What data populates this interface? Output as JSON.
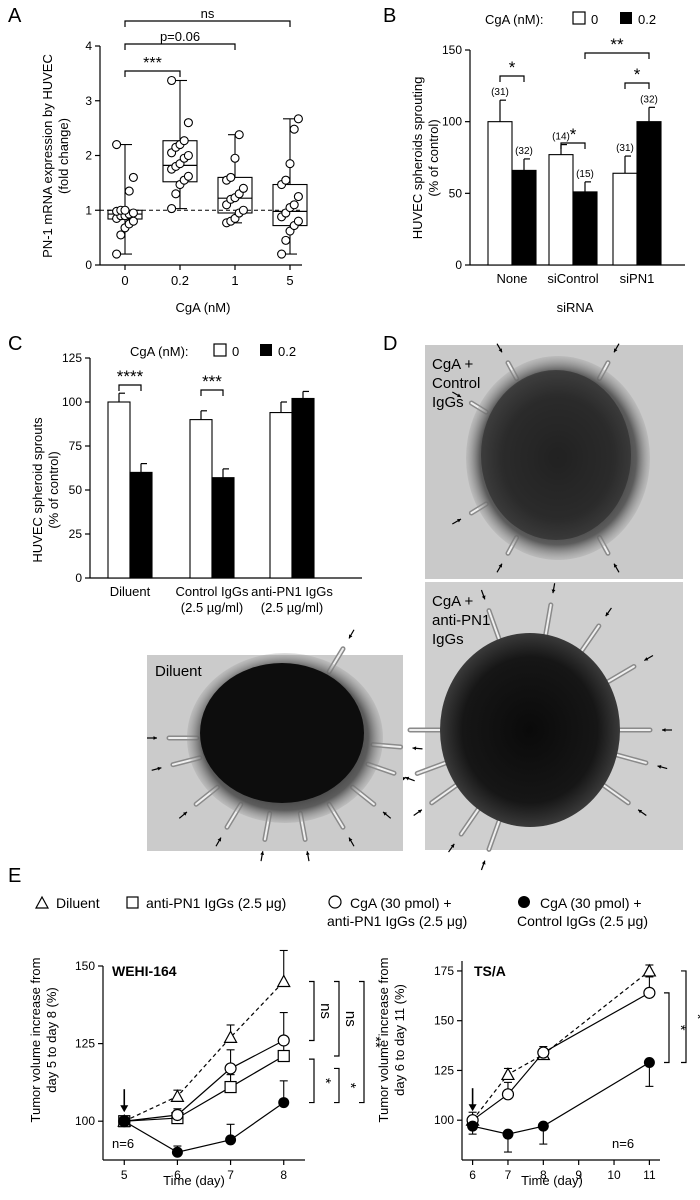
{
  "colors": {
    "open": "#ffffff",
    "filled": "#000000",
    "micro_bg": "#c8c8c8",
    "micro_dark": "#151515"
  },
  "panels": {
    "A": "A",
    "B": "B",
    "C": "C",
    "D": "D",
    "E": "E"
  },
  "chart_data": [
    {
      "id": "A",
      "type": "box",
      "ylabel": "PN-1 mRNA expression by HUVEC\n(fold change)",
      "xlabel": "CgA (nM)",
      "categories": [
        "0",
        "0.2",
        "1",
        "5"
      ],
      "ylim": [
        0,
        4
      ],
      "yticks": [
        "0",
        "1",
        "2",
        "3",
        "4"
      ],
      "reference_line": 1,
      "boxes": [
        {
          "min": 0.2,
          "q1": 0.84,
          "median": 0.93,
          "q3": 1.0,
          "max": 2.2
        },
        {
          "min": 1.03,
          "q1": 1.52,
          "median": 1.82,
          "q3": 2.27,
          "max": 3.37
        },
        {
          "min": 0.77,
          "q1": 0.95,
          "median": 1.22,
          "q3": 1.6,
          "max": 2.38
        },
        {
          "min": 0.2,
          "q1": 0.72,
          "median": 0.98,
          "q3": 1.47,
          "max": 2.67
        }
      ],
      "points": [
        [
          0.2,
          0.55,
          0.68,
          0.75,
          0.8,
          0.85,
          0.9,
          0.9,
          0.93,
          0.95,
          0.98,
          1.0,
          1.0,
          1.35,
          1.6,
          2.2
        ],
        [
          1.03,
          1.3,
          1.47,
          1.55,
          1.62,
          1.75,
          1.8,
          1.85,
          1.95,
          2.0,
          2.05,
          2.15,
          2.2,
          2.27,
          2.6,
          3.37
        ],
        [
          0.77,
          0.8,
          0.85,
          0.95,
          1.0,
          1.1,
          1.2,
          1.23,
          1.3,
          1.4,
          1.55,
          1.6,
          1.95,
          2.38
        ],
        [
          0.2,
          0.45,
          0.62,
          0.72,
          0.8,
          0.88,
          0.95,
          1.05,
          1.1,
          1.25,
          1.47,
          1.55,
          1.85,
          2.48,
          2.67
        ]
      ],
      "annotations": [
        {
          "from": "0",
          "to": "0.2",
          "text": "***"
        },
        {
          "from": "0",
          "to": "1",
          "text": "p=0.06"
        },
        {
          "from": "0",
          "to": "5",
          "text": "ns"
        }
      ]
    },
    {
      "id": "B",
      "type": "bar",
      "legend_title": "CgA (nM):",
      "legend": [
        "0",
        "0.2"
      ],
      "ylabel": "HUVEC spheroids sprouting\n(% of control)",
      "xlabel": "siRNA",
      "categories": [
        "None",
        "siControl",
        "siPN1"
      ],
      "ylim": [
        0,
        150
      ],
      "yticks": [
        "0",
        "50",
        "100",
        "150"
      ],
      "series": [
        {
          "name": "0",
          "values": [
            100,
            77,
            64
          ],
          "errors": [
            15,
            7,
            12
          ],
          "n_labels": [
            "(31)",
            "(14)",
            "(31)"
          ]
        },
        {
          "name": "0.2",
          "values": [
            66,
            51,
            100
          ],
          "errors": [
            8,
            7,
            10
          ],
          "n_labels": [
            "(32)",
            "(15)",
            "(32)"
          ]
        }
      ],
      "annotations": [
        "*",
        "*",
        "*",
        "**"
      ]
    },
    {
      "id": "C",
      "type": "bar",
      "legend_title": "CgA (nM):",
      "legend": [
        "0",
        "0.2"
      ],
      "ylabel": "HUVEC spheroid sprouts\n(% of control)",
      "categories": [
        "Diluent",
        "Control IgGs\n(2.5 µg/ml)",
        "anti-PN1 IgGs\n(2.5 µg/ml)"
      ],
      "ylim": [
        0,
        125
      ],
      "yticks": [
        "0",
        "25",
        "50",
        "75",
        "100",
        "125"
      ],
      "series": [
        {
          "name": "0",
          "values": [
            100,
            90,
            94
          ],
          "errors": [
            5,
            5,
            6
          ]
        },
        {
          "name": "0.2",
          "values": [
            60,
            57,
            102
          ],
          "errors": [
            5,
            5,
            4
          ]
        }
      ],
      "annotations": [
        "****",
        "***"
      ]
    },
    {
      "id": "E1",
      "type": "line",
      "title": "WEHI-164",
      "ylabel": "Tumor volume increase from\nday 5 to day 8 (%)",
      "xlabel": "Time (day)",
      "xlim": [
        4.6,
        8.4
      ],
      "xticks": [
        "5",
        "6",
        "7",
        "8"
      ],
      "ylim": [
        87.5,
        150
      ],
      "yticks": [
        "100",
        "125",
        "150"
      ],
      "n_label": "n=6",
      "series": [
        {
          "name": "Diluent",
          "x": [
            5,
            6,
            7,
            8
          ],
          "y": [
            100,
            108,
            127,
            145
          ],
          "err": [
            0,
            2,
            4,
            10
          ]
        },
        {
          "name": "anti-PN1 IgGs (2.5 µg)",
          "x": [
            5,
            6,
            7,
            8
          ],
          "y": [
            100,
            101,
            111,
            121
          ],
          "err": [
            0,
            2,
            4,
            6
          ]
        },
        {
          "name": "CgA (30 pmol) + anti-PN1 IgGs (2.5 µg)",
          "x": [
            5,
            6,
            7,
            8
          ],
          "y": [
            100,
            102,
            117,
            126
          ],
          "err": [
            0,
            2,
            6,
            9
          ]
        },
        {
          "name": "CgA (30 pmol) + Control IgGs (2.5 µg)",
          "x": [
            5,
            6,
            7,
            8
          ],
          "y": [
            100,
            90,
            94,
            106
          ],
          "err": [
            0,
            2,
            5,
            7
          ]
        }
      ],
      "annotations": [
        "ns",
        "ns",
        "*",
        "*",
        "**"
      ]
    },
    {
      "id": "E2",
      "type": "line",
      "title": "TS/A",
      "ylabel": "Tumor volume increase from\nday 6 to day 11 (%)",
      "xlabel": "Time (day)",
      "xlim": [
        5.7,
        11.3
      ],
      "xticks": [
        "6",
        "7",
        "8",
        "9",
        "10",
        "11"
      ],
      "ylim": [
        80,
        180
      ],
      "yticks": [
        "100",
        "125",
        "150",
        "175"
      ],
      "n_label": "n=6",
      "series": [
        {
          "name": "Diluent",
          "x": [
            6,
            7,
            8,
            11
          ],
          "y": [
            100,
            123,
            133,
            175
          ],
          "err": [
            0,
            3,
            3,
            3
          ]
        },
        {
          "name": "CgA (30 pmol) + anti-PN1 IgGs (2.5 µg)",
          "x": [
            6,
            7,
            8,
            11
          ],
          "y": [
            100,
            113,
            134,
            164
          ],
          "err": [
            4,
            6,
            3,
            8
          ]
        },
        {
          "name": "CgA (30 pmol) + Control IgGs (2.5 µg)",
          "x": [
            6,
            7,
            8,
            11
          ],
          "y": [
            97,
            93,
            97,
            129
          ],
          "err": [
            4,
            9,
            9,
            12
          ]
        }
      ],
      "annotations": [
        "*",
        "*"
      ]
    }
  ],
  "legend_E": {
    "diluent": "Diluent",
    "anti_pn1": "anti-PN1 IgGs (2.5 μg)",
    "cga_anti_line1": "CgA (30 pmol) +",
    "cga_anti_line2": "anti-PN1 IgGs (2.5 μg)",
    "cga_ctrl_line1": "CgA (30 pmol) +",
    "cga_ctrl_line2": "Control IgGs (2.5 μg)"
  },
  "micrographs": {
    "diluent": {
      "label": "Diluent"
    },
    "control": {
      "label_line1": "CgA +",
      "label_line2": "Control",
      "label_line3": "IgGs"
    },
    "anti": {
      "label_line1": "CgA +",
      "label_line2": "anti-PN1",
      "label_line3": "IgGs"
    }
  }
}
